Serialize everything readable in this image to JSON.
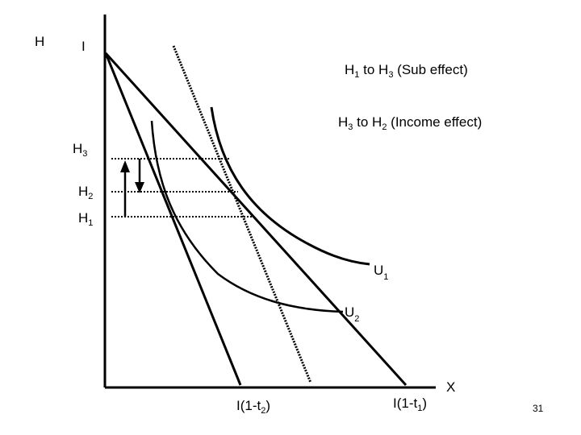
{
  "axes": {
    "y_label": "H",
    "x_label": "X",
    "intercept_label": "I"
  },
  "annotations": {
    "sub_effect": {
      "main": "H",
      "s1": "1",
      "mid": " to H",
      "s2": "3",
      "tail": " (Sub effect)"
    },
    "income_effect": {
      "main": "H",
      "s1": "3",
      "mid": " to H",
      "s2": "2",
      "tail": " (Income effect)"
    }
  },
  "levels": [
    {
      "main": "H",
      "sub": "3"
    },
    {
      "main": "H",
      "sub": "2"
    },
    {
      "main": "H",
      "sub": "1"
    }
  ],
  "curves": [
    {
      "main": "U",
      "sub": "1"
    },
    {
      "main": "U",
      "sub": "2"
    }
  ],
  "budget_intercepts": [
    {
      "pre": "I(1-t",
      "sub": "2",
      "post": ")"
    },
    {
      "pre": "I(1-t",
      "sub": "1",
      "post": ")"
    }
  ],
  "page_number": "31"
}
